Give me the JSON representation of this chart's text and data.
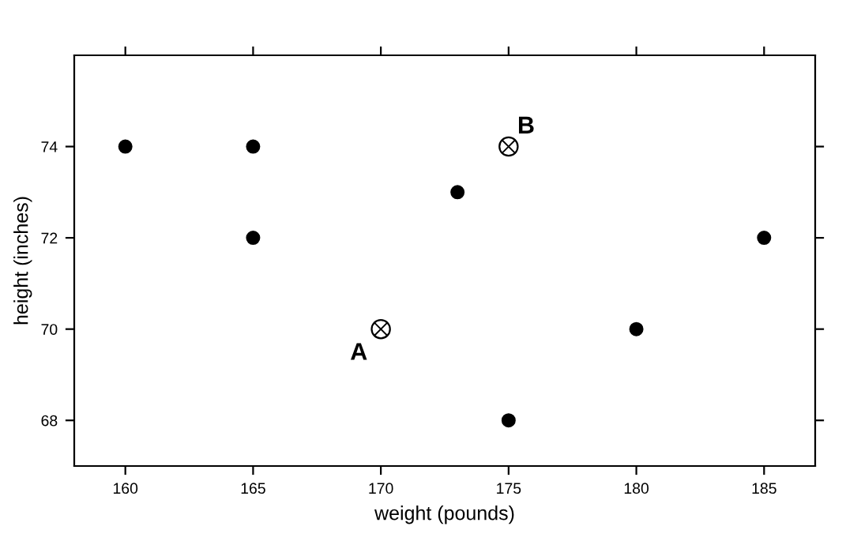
{
  "chart_data": {
    "type": "scatter",
    "xlabel": "weight (pounds)",
    "ylabel": "height (inches)",
    "series": [
      {
        "color": "#000000",
        "marker": "circle",
        "x": [
          160,
          165,
          165,
          173,
          175,
          180,
          185
        ],
        "values": [
          74,
          74,
          72,
          73,
          68,
          70,
          72
        ]
      },
      {
        "color": "#000000",
        "marker": "cross",
        "x": [
          170,
          175
        ],
        "values": [
          70,
          74
        ]
      }
    ],
    "annotations": [
      {
        "text": "A",
        "x": 170,
        "y": 70
      },
      {
        "text": "B",
        "x": 175,
        "y": 74
      }
    ],
    "xlim": [
      158,
      187
    ],
    "ylim": [
      67,
      76
    ],
    "xticks": [
      160,
      165,
      170,
      175,
      180,
      185
    ],
    "yticks": [
      68,
      70,
      72,
      74
    ],
    "grid": false,
    "legend": false
  }
}
